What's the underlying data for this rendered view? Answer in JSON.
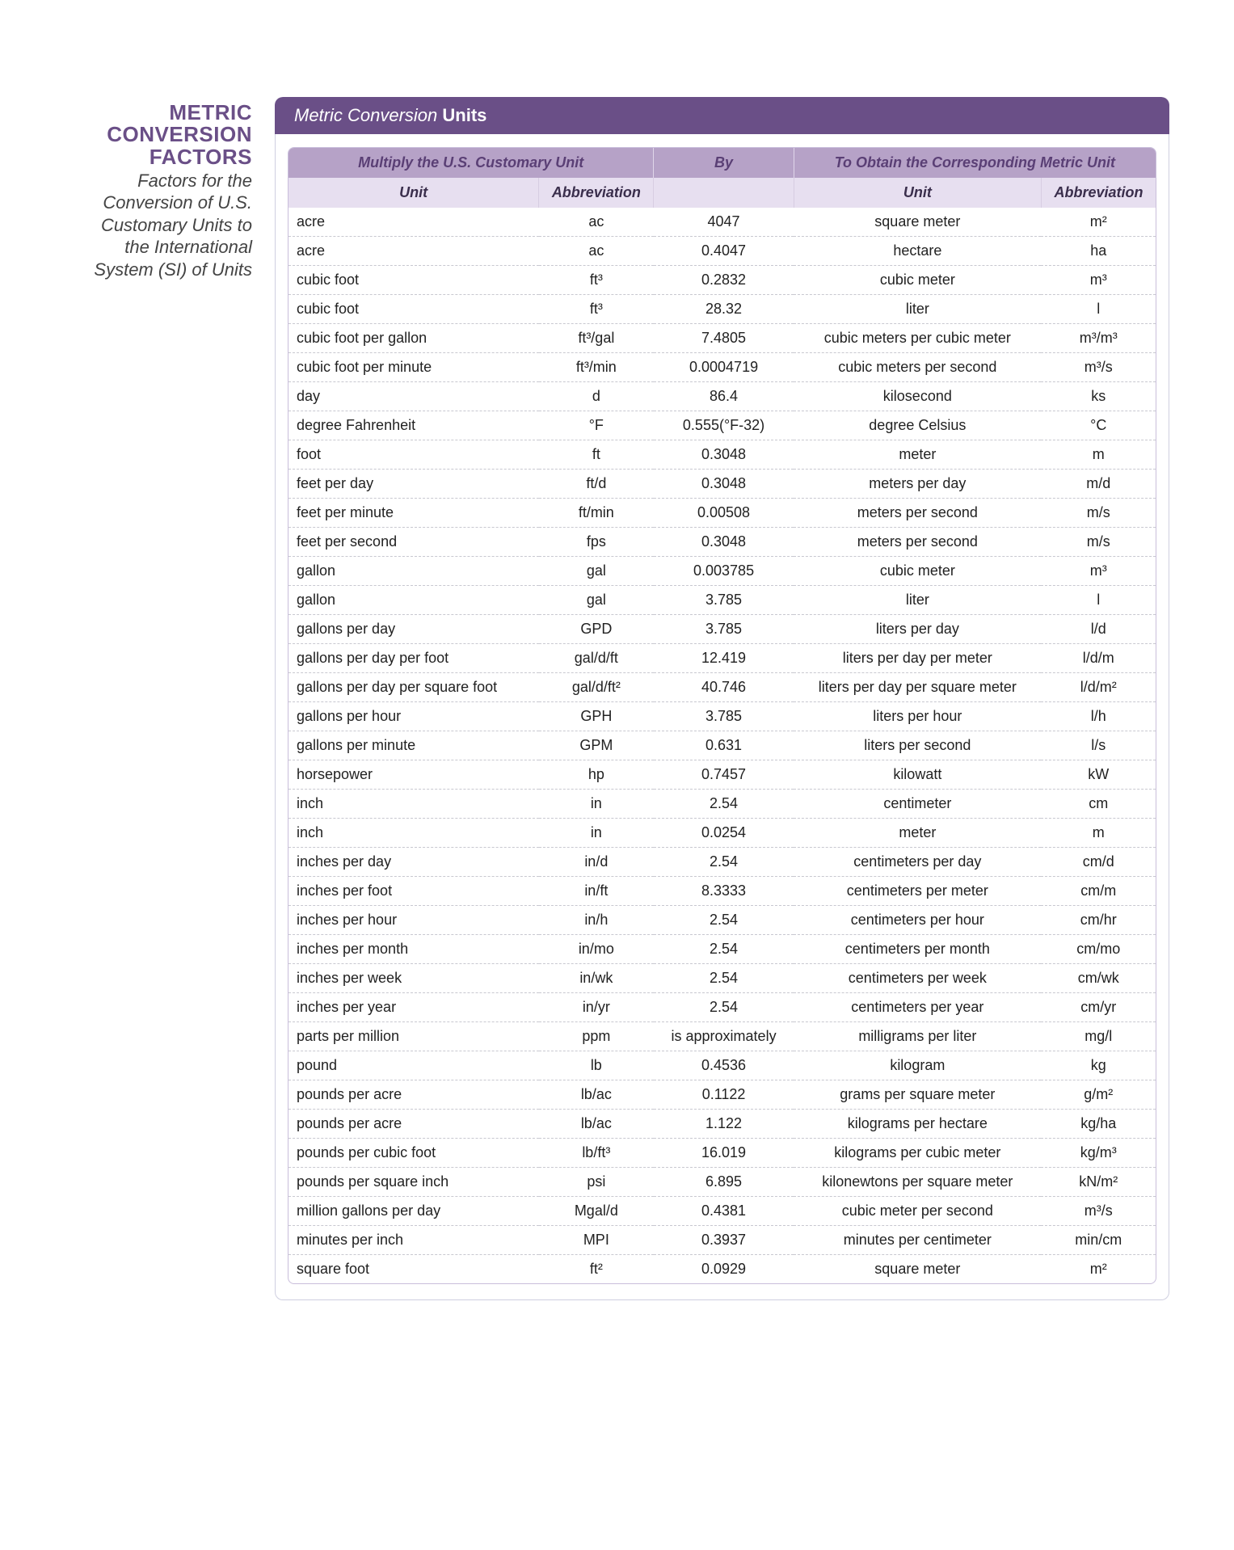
{
  "sidebar": {
    "heading_lines": [
      "METRIC",
      "CONVERSION",
      "FACTORS"
    ],
    "subtitle_lines": [
      "Factors for the",
      "Conversion of U.S.",
      "Customary Units to",
      "the International",
      "System (SI) of Units"
    ]
  },
  "card": {
    "title_italic": "Metric Conversion",
    "title_bold": "Units"
  },
  "table": {
    "group_headers": [
      {
        "label": "Multiply the U.S. Customary Unit",
        "span": 2
      },
      {
        "label": "By",
        "span": 1
      },
      {
        "label": "To Obtain the Corresponding Metric Unit",
        "span": 2
      }
    ],
    "sub_headers": [
      "Unit",
      "Abbreviation",
      "",
      "Unit",
      "Abbreviation"
    ],
    "columns_align": [
      "left",
      "center",
      "center",
      "center",
      "center"
    ],
    "rows": [
      [
        "acre",
        "ac",
        "4047",
        "square meter",
        "m²"
      ],
      [
        "acre",
        "ac",
        "0.4047",
        "hectare",
        "ha"
      ],
      [
        "cubic foot",
        "ft³",
        "0.2832",
        "cubic meter",
        "m³"
      ],
      [
        "cubic foot",
        "ft³",
        "28.32",
        "liter",
        "l"
      ],
      [
        "cubic foot per gallon",
        "ft³/gal",
        "7.4805",
        "cubic meters per cubic meter",
        "m³/m³"
      ],
      [
        "cubic foot per minute",
        "ft³/min",
        "0.0004719",
        "cubic meters per second",
        "m³/s"
      ],
      [
        "day",
        "d",
        "86.4",
        "kilosecond",
        "ks"
      ],
      [
        "degree Fahrenheit",
        "°F",
        "0.555(°F-32)",
        "degree Celsius",
        "°C"
      ],
      [
        "foot",
        "ft",
        "0.3048",
        "meter",
        "m"
      ],
      [
        "feet per day",
        "ft/d",
        "0.3048",
        "meters per day",
        "m/d"
      ],
      [
        "feet per minute",
        "ft/min",
        "0.00508",
        "meters per second",
        "m/s"
      ],
      [
        "feet per second",
        "fps",
        "0.3048",
        "meters per second",
        "m/s"
      ],
      [
        "gallon",
        "gal",
        "0.003785",
        "cubic meter",
        "m³"
      ],
      [
        "gallon",
        "gal",
        "3.785",
        "liter",
        "l"
      ],
      [
        "gallons per day",
        "GPD",
        "3.785",
        "liters per day",
        "l/d"
      ],
      [
        "gallons per day per foot",
        "gal/d/ft",
        "12.419",
        "liters per day per meter",
        "l/d/m"
      ],
      [
        "gallons per day per square foot",
        "gal/d/ft²",
        "40.746",
        "liters per day per square meter",
        "l/d/m²"
      ],
      [
        "gallons per hour",
        "GPH",
        "3.785",
        "liters per hour",
        "l/h"
      ],
      [
        "gallons per minute",
        "GPM",
        "0.631",
        "liters per second",
        "l/s"
      ],
      [
        "horsepower",
        "hp",
        "0.7457",
        "kilowatt",
        "kW"
      ],
      [
        "inch",
        "in",
        "2.54",
        "centimeter",
        "cm"
      ],
      [
        "inch",
        "in",
        "0.0254",
        "meter",
        "m"
      ],
      [
        "inches per day",
        "in/d",
        "2.54",
        "centimeters per day",
        "cm/d"
      ],
      [
        "inches per foot",
        "in/ft",
        "8.3333",
        "centimeters per meter",
        "cm/m"
      ],
      [
        "inches per hour",
        "in/h",
        "2.54",
        "centimeters per hour",
        "cm/hr"
      ],
      [
        "inches per month",
        "in/mo",
        "2.54",
        "centimeters per month",
        "cm/mo"
      ],
      [
        "inches per week",
        "in/wk",
        "2.54",
        "centimeters per week",
        "cm/wk"
      ],
      [
        "inches per year",
        "in/yr",
        "2.54",
        "centimeters per year",
        "cm/yr"
      ],
      [
        "parts per million",
        "ppm",
        "is approximately",
        "milligrams per liter",
        "mg/l"
      ],
      [
        "pound",
        "lb",
        "0.4536",
        "kilogram",
        "kg"
      ],
      [
        "pounds per acre",
        "lb/ac",
        "0.1122",
        "grams per square meter",
        "g/m²"
      ],
      [
        "pounds per acre",
        "lb/ac",
        "1.122",
        "kilograms per hectare",
        "kg/ha"
      ],
      [
        "pounds per cubic foot",
        "lb/ft³",
        "16.019",
        "kilograms per cubic meter",
        "kg/m³"
      ],
      [
        "pounds per square inch",
        "psi",
        "6.895",
        "kilonewtons per square meter",
        "kN/m²"
      ],
      [
        "million gallons per day",
        "Mgal/d",
        "0.4381",
        "cubic meter per second",
        "m³/s"
      ],
      [
        "minutes per inch",
        "MPI",
        "0.3937",
        "minutes per centimeter",
        "min/cm"
      ],
      [
        "square foot",
        "ft²",
        "0.0929",
        "square meter",
        "m²"
      ]
    ]
  },
  "style": {
    "header_bg": "#6a4f87",
    "group_bg": "#b6a2c7",
    "sub_bg": "#e7dff0",
    "row_border": "#c8c8d0",
    "heading_color": "#6a4f87",
    "font_size_body": 18,
    "font_size_heading": 26,
    "font_size_subtitle": 22
  }
}
